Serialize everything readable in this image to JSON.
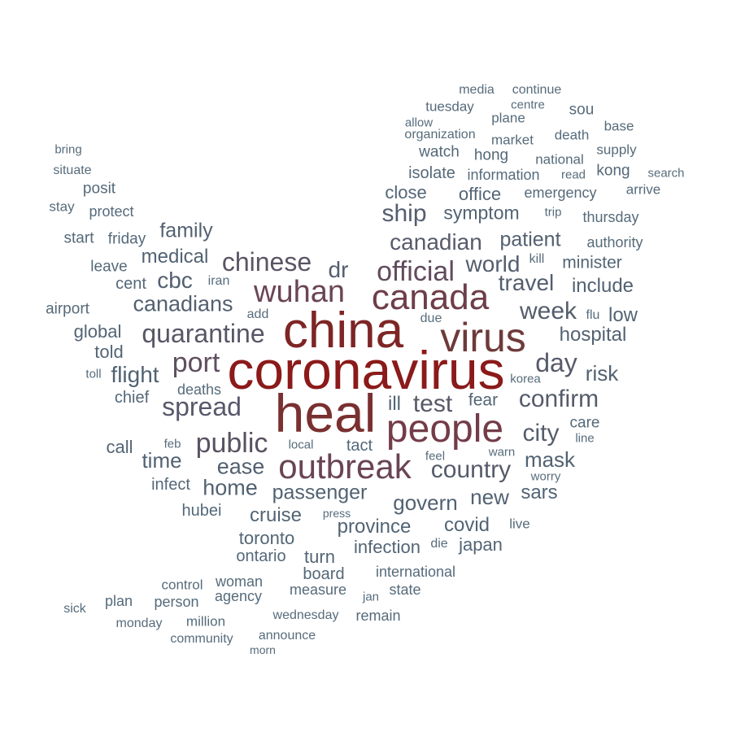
{
  "words": [
    {
      "text": "coronavirus",
      "color": "#8b1a1a"
    },
    {
      "text": "heal",
      "color": "#7a3030"
    },
    {
      "text": "china",
      "color": "#7e2525"
    },
    {
      "text": "virus",
      "color": "#6e3a3a"
    },
    {
      "text": "canada",
      "color": "#6e3e48"
    },
    {
      "text": "people",
      "color": "#733c48"
    },
    {
      "text": "outbreak",
      "color": "#6a4454"
    },
    {
      "text": "wuhan",
      "color": "#6b4555"
    },
    {
      "text": "official",
      "color": "#614b5e"
    },
    {
      "text": "port",
      "color": "#5f4f60"
    },
    {
      "text": "public",
      "color": "#5a5262"
    },
    {
      "text": "chinese",
      "color": "#5a5464"
    },
    {
      "text": "quarantine",
      "color": "#575666"
    },
    {
      "text": "spread",
      "color": "#57586a"
    },
    {
      "text": "confirm",
      "color": "#555b6b"
    },
    {
      "text": "country",
      "color": "#555b6b"
    },
    {
      "text": "day",
      "color": "#575a6a"
    },
    {
      "text": "test",
      "color": "#585868"
    },
    {
      "text": "canadian",
      "color": "#575b6b"
    },
    {
      "text": "city",
      "color": "#545d6d"
    },
    {
      "text": "week",
      "color": "#545d6d"
    },
    {
      "text": "ship",
      "color": "#535e6e"
    },
    {
      "text": "travel",
      "color": "#535e6e"
    },
    {
      "text": "dr",
      "color": "#535e6e"
    },
    {
      "text": "world",
      "color": "#535e6e"
    },
    {
      "text": "patient",
      "color": "#526070"
    },
    {
      "text": "ease",
      "color": "#536070"
    },
    {
      "text": "canadians",
      "color": "#536070"
    },
    {
      "text": "cbc",
      "color": "#536070"
    },
    {
      "text": "flight",
      "color": "#526272"
    },
    {
      "text": "home",
      "color": "#526272"
    },
    {
      "text": "mask",
      "color": "#526272"
    },
    {
      "text": "govern",
      "color": "#526272"
    },
    {
      "text": "passenger",
      "color": "#526272"
    },
    {
      "text": "family",
      "color": "#536272"
    },
    {
      "text": "risk",
      "color": "#526272"
    },
    {
      "text": "include",
      "color": "#526272"
    },
    {
      "text": "hospital",
      "color": "#526272"
    },
    {
      "text": "medical",
      "color": "#526272"
    },
    {
      "text": "new",
      "color": "#526272"
    },
    {
      "text": "time",
      "color": "#526272"
    },
    {
      "text": "symptom",
      "color": "#526474"
    },
    {
      "text": "cruise",
      "color": "#526474"
    },
    {
      "text": "province",
      "color": "#526474"
    },
    {
      "text": "covid",
      "color": "#526474"
    },
    {
      "text": "sars",
      "color": "#526474"
    },
    {
      "text": "low",
      "color": "#526474"
    },
    {
      "text": "ill",
      "color": "#526474"
    },
    {
      "text": "office",
      "color": "#536575"
    },
    {
      "text": "close",
      "color": "#536575"
    },
    {
      "text": "minister",
      "color": "#536575"
    },
    {
      "text": "toronto",
      "color": "#536575"
    },
    {
      "text": "japan",
      "color": "#536575"
    },
    {
      "text": "infection",
      "color": "#536575"
    },
    {
      "text": "told",
      "color": "#536575"
    },
    {
      "text": "global",
      "color": "#536575"
    },
    {
      "text": "fear",
      "color": "#536575"
    },
    {
      "text": "turn",
      "color": "#536575"
    },
    {
      "text": "call",
      "color": "#536575"
    },
    {
      "text": "isolate",
      "color": "#546878"
    },
    {
      "text": "hubei",
      "color": "#546878"
    },
    {
      "text": "ontario",
      "color": "#546878"
    },
    {
      "text": "cent",
      "color": "#546878"
    },
    {
      "text": "infect",
      "color": "#546878"
    },
    {
      "text": "chief",
      "color": "#546878"
    },
    {
      "text": "board",
      "color": "#546878"
    },
    {
      "text": "tact",
      "color": "#546878"
    },
    {
      "text": "kong",
      "color": "#546878"
    },
    {
      "text": "hong",
      "color": "#546878"
    },
    {
      "text": "watch",
      "color": "#546878"
    },
    {
      "text": "friday",
      "color": "#556a7a"
    },
    {
      "text": "start",
      "color": "#556a7a"
    },
    {
      "text": "leave",
      "color": "#556a7a"
    },
    {
      "text": "airport",
      "color": "#556a7a"
    },
    {
      "text": "care",
      "color": "#556a7a"
    },
    {
      "text": "posit",
      "color": "#556a7a"
    },
    {
      "text": "protect",
      "color": "#566b7b"
    },
    {
      "text": "emergency",
      "color": "#566b7b"
    },
    {
      "text": "information",
      "color": "#566b7b"
    },
    {
      "text": "thursday",
      "color": "#566b7b"
    },
    {
      "text": "authority",
      "color": "#566b7b"
    },
    {
      "text": "deaths",
      "color": "#566b7b"
    },
    {
      "text": "plan",
      "color": "#566b7b"
    },
    {
      "text": "woman",
      "color": "#566b7b"
    },
    {
      "text": "international",
      "color": "#566b7b"
    },
    {
      "text": "state",
      "color": "#566b7b"
    },
    {
      "text": "remain",
      "color": "#566b7b"
    },
    {
      "text": "measure",
      "color": "#566b7b"
    },
    {
      "text": "agency",
      "color": "#566b7b"
    },
    {
      "text": "person",
      "color": "#566b7b"
    },
    {
      "text": "control",
      "color": "#566b7b"
    },
    {
      "text": "million",
      "color": "#566b7b"
    },
    {
      "text": "national",
      "color": "#566b7b"
    },
    {
      "text": "death",
      "color": "#566b7b"
    },
    {
      "text": "market",
      "color": "#566b7b"
    },
    {
      "text": "plane",
      "color": "#566b7b"
    },
    {
      "text": "supply",
      "color": "#566b7b"
    },
    {
      "text": "base",
      "color": "#566b7b"
    },
    {
      "text": "sou",
      "color": "#566b7b"
    },
    {
      "text": "tuesday",
      "color": "#566b7b"
    },
    {
      "text": "arrive",
      "color": "#566b7b"
    },
    {
      "text": "live",
      "color": "#566b7b"
    },
    {
      "text": "situate",
      "color": "#576c7c"
    },
    {
      "text": "stay",
      "color": "#576c7c"
    },
    {
      "text": "bring",
      "color": "#576c7c"
    },
    {
      "text": "iran",
      "color": "#576c7c"
    },
    {
      "text": "add",
      "color": "#576c7c"
    },
    {
      "text": "due",
      "color": "#576c7c"
    },
    {
      "text": "kill",
      "color": "#576c7c"
    },
    {
      "text": "flu",
      "color": "#576c7c"
    },
    {
      "text": "trip",
      "color": "#576c7c"
    },
    {
      "text": "read",
      "color": "#576c7c"
    },
    {
      "text": "search",
      "color": "#576c7c"
    },
    {
      "text": "continue",
      "color": "#576c7c"
    },
    {
      "text": "media",
      "color": "#576c7c"
    },
    {
      "text": "centre",
      "color": "#576c7c"
    },
    {
      "text": "allow",
      "color": "#576c7c"
    },
    {
      "text": "organization",
      "color": "#576c7c"
    },
    {
      "text": "korea",
      "color": "#576c7c"
    },
    {
      "text": "line",
      "color": "#576c7c"
    },
    {
      "text": "warn",
      "color": "#576c7c"
    },
    {
      "text": "worry",
      "color": "#576c7c"
    },
    {
      "text": "feel",
      "color": "#576c7c"
    },
    {
      "text": "local",
      "color": "#576c7c"
    },
    {
      "text": "feb",
      "color": "#576c7c"
    },
    {
      "text": "toll",
      "color": "#576c7c"
    },
    {
      "text": "press",
      "color": "#576c7c"
    },
    {
      "text": "die",
      "color": "#576c7c"
    },
    {
      "text": "jan",
      "color": "#576c7c"
    },
    {
      "text": "wednesday",
      "color": "#576c7c"
    },
    {
      "text": "announce",
      "color": "#576c7c"
    },
    {
      "text": "community",
      "color": "#576c7c"
    },
    {
      "text": "monday",
      "color": "#576c7c"
    },
    {
      "text": "sick",
      "color": "#576c7c"
    },
    {
      "text": "morn",
      "color": "#576c7c"
    }
  ]
}
